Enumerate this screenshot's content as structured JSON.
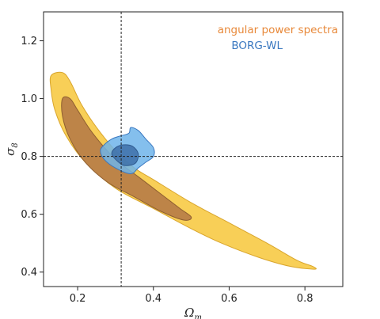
{
  "chart_data": {
    "type": "contour",
    "xlabel": "Ω",
    "xlabel_sub": "m",
    "ylabel": "σ",
    "ylabel_sub": "8",
    "xlim": [
      0.11,
      0.9
    ],
    "ylim": [
      0.35,
      1.3
    ],
    "xticks": [
      {
        "value": 0.2,
        "label": "0.2"
      },
      {
        "value": 0.4,
        "label": "0.4"
      },
      {
        "value": 0.6,
        "label": "0.6"
      },
      {
        "value": 0.8,
        "label": "0.8"
      }
    ],
    "yticks": [
      {
        "value": 0.4,
        "label": "0.4"
      },
      {
        "value": 0.6,
        "label": "0.6"
      },
      {
        "value": 0.8,
        "label": "0.8"
      },
      {
        "value": 1.0,
        "label": "1.0"
      },
      {
        "value": 1.2,
        "label": "1.2"
      }
    ],
    "reference_lines": {
      "x": 0.315,
      "y": 0.8
    },
    "legend": {
      "placement": "top-right"
    },
    "series": [
      {
        "name": "angular power spectra",
        "color": "#e8893a",
        "contours": [
          {
            "level": "outer",
            "fill": "#f8cc4e",
            "stroke": "#d9a52c",
            "points": [
              [
                0.13,
                1.08
              ],
              [
                0.16,
                1.09
              ],
              [
                0.18,
                1.06
              ],
              [
                0.21,
                0.98
              ],
              [
                0.25,
                0.9
              ],
              [
                0.3,
                0.82
              ],
              [
                0.35,
                0.76
              ],
              [
                0.4,
                0.72
              ],
              [
                0.5,
                0.64
              ],
              [
                0.6,
                0.57
              ],
              [
                0.7,
                0.5
              ],
              [
                0.78,
                0.44
              ],
              [
                0.82,
                0.42
              ],
              [
                0.825,
                0.41
              ],
              [
                0.76,
                0.42
              ],
              [
                0.68,
                0.45
              ],
              [
                0.58,
                0.5
              ],
              [
                0.5,
                0.55
              ],
              [
                0.4,
                0.62
              ],
              [
                0.3,
                0.69
              ],
              [
                0.22,
                0.78
              ],
              [
                0.17,
                0.87
              ],
              [
                0.14,
                0.96
              ],
              [
                0.13,
                1.03
              ]
            ]
          },
          {
            "level": "inner",
            "fill": "#b98048",
            "stroke": "#8f5f30",
            "points": [
              [
                0.16,
                1.0
              ],
              [
                0.18,
                1.0
              ],
              [
                0.2,
                0.96
              ],
              [
                0.24,
                0.88
              ],
              [
                0.3,
                0.79
              ],
              [
                0.36,
                0.73
              ],
              [
                0.42,
                0.67
              ],
              [
                0.47,
                0.62
              ],
              [
                0.5,
                0.59
              ],
              [
                0.48,
                0.58
              ],
              [
                0.42,
                0.61
              ],
              [
                0.35,
                0.66
              ],
              [
                0.28,
                0.71
              ],
              [
                0.22,
                0.78
              ],
              [
                0.18,
                0.86
              ],
              [
                0.16,
                0.94
              ]
            ]
          }
        ]
      },
      {
        "name": "BORG-WL",
        "color": "#3a78c0",
        "contours": [
          {
            "level": "outer",
            "fill": "#6eb4ea",
            "stroke": "#3a78c0",
            "points": [
              [
                0.27,
                0.84
              ],
              [
                0.29,
                0.86
              ],
              [
                0.31,
                0.87
              ],
              [
                0.335,
                0.88
              ],
              [
                0.34,
                0.9
              ],
              [
                0.36,
                0.89
              ],
              [
                0.38,
                0.86
              ],
              [
                0.4,
                0.83
              ],
              [
                0.4,
                0.8
              ],
              [
                0.38,
                0.78
              ],
              [
                0.36,
                0.76
              ],
              [
                0.34,
                0.74
              ],
              [
                0.3,
                0.76
              ],
              [
                0.27,
                0.79
              ],
              [
                0.26,
                0.82
              ]
            ]
          },
          {
            "level": "inner",
            "fill": "#3d6fa8",
            "stroke": "#2f5a8f",
            "points": [
              [
                0.3,
                0.83
              ],
              [
                0.32,
                0.84
              ],
              [
                0.345,
                0.835
              ],
              [
                0.36,
                0.81
              ],
              [
                0.355,
                0.78
              ],
              [
                0.34,
                0.77
              ],
              [
                0.32,
                0.77
              ],
              [
                0.3,
                0.79
              ],
              [
                0.29,
                0.81
              ]
            ]
          }
        ]
      }
    ]
  }
}
